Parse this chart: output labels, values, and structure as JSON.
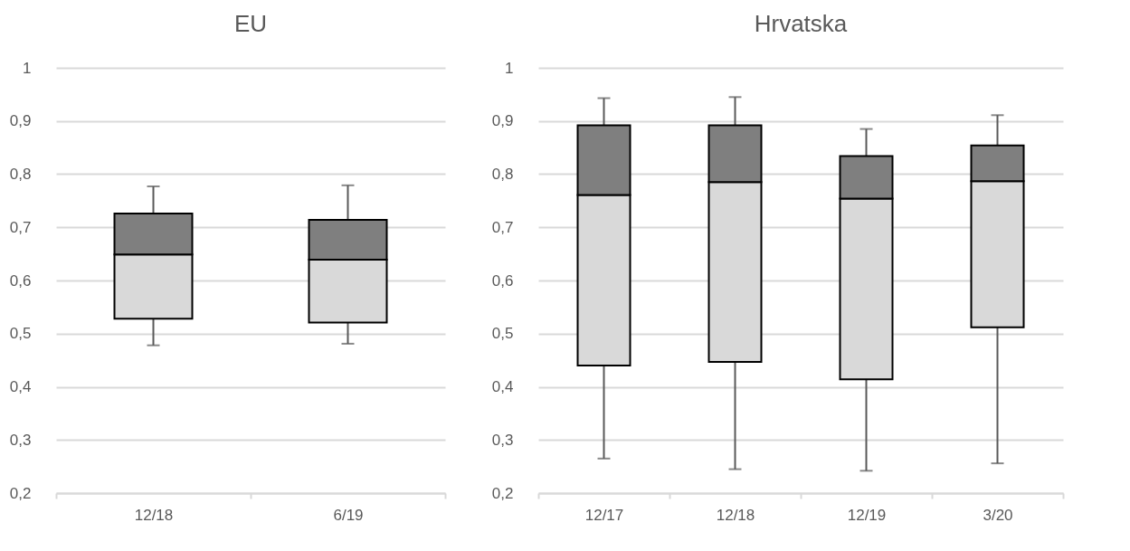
{
  "chart_data": [
    {
      "type": "box",
      "title": "EU",
      "categories": [
        "12/18",
        "6/19"
      ],
      "series": [
        {
          "color": "#d9d9d9",
          "boxes": [
            {
              "low": 0.478,
              "q1": 0.528,
              "median": 0.649,
              "q3": 0.726,
              "high": 0.777
            },
            {
              "low": 0.481,
              "q1": 0.521,
              "median": 0.639,
              "q3": 0.714,
              "high": 0.779
            }
          ]
        }
      ],
      "color": "#7f7f7f",
      "ylim": [
        0.2,
        1
      ],
      "yticks": [
        {
          "value": 0.2,
          "label": "0,2"
        },
        {
          "value": 0.3,
          "label": "0,3"
        },
        {
          "value": 0.4,
          "label": "0,4"
        },
        {
          "value": 0.5,
          "label": "0,5"
        },
        {
          "value": 0.6,
          "label": "0,6"
        },
        {
          "value": 0.7,
          "label": "0,7"
        },
        {
          "value": 0.8,
          "label": "0,8"
        },
        {
          "value": 0.9,
          "label": "0,9"
        },
        1
      ],
      "grid": "y"
    },
    {
      "type": "box",
      "title": "Hrvatska",
      "categories": [
        "12/17",
        "12/18",
        "12/19",
        "3/20"
      ],
      "series": [
        {
          "color": "#d9d9d9",
          "boxes": [
            {
              "low": 0.265,
              "q1": 0.44,
              "median": 0.761,
              "q3": 0.892,
              "high": 0.943
            },
            {
              "low": 0.245,
              "q1": 0.447,
              "median": 0.785,
              "q3": 0.892,
              "high": 0.945
            },
            {
              "low": 0.242,
              "q1": 0.414,
              "median": 0.754,
              "q3": 0.834,
              "high": 0.885
            },
            {
              "low": 0.256,
              "q1": 0.512,
              "median": 0.787,
              "q3": 0.854,
              "high": 0.911
            }
          ]
        }
      ],
      "color": "#7f7f7f",
      "ylim": [
        0.2,
        1
      ],
      "yticks": [
        {
          "value": 0.2,
          "label": "0,2"
        },
        {
          "value": 0.3,
          "label": "0,3"
        },
        {
          "value": 0.4,
          "label": "0,4"
        },
        {
          "value": 0.5,
          "label": "0,5"
        },
        {
          "value": 0.6,
          "label": "0,6"
        },
        {
          "value": 0.7,
          "label": "0,7"
        },
        {
          "value": 0.8,
          "label": "0,8"
        },
        {
          "value": 0.9,
          "label": "0,9"
        },
        1
      ],
      "grid": "y"
    }
  ]
}
